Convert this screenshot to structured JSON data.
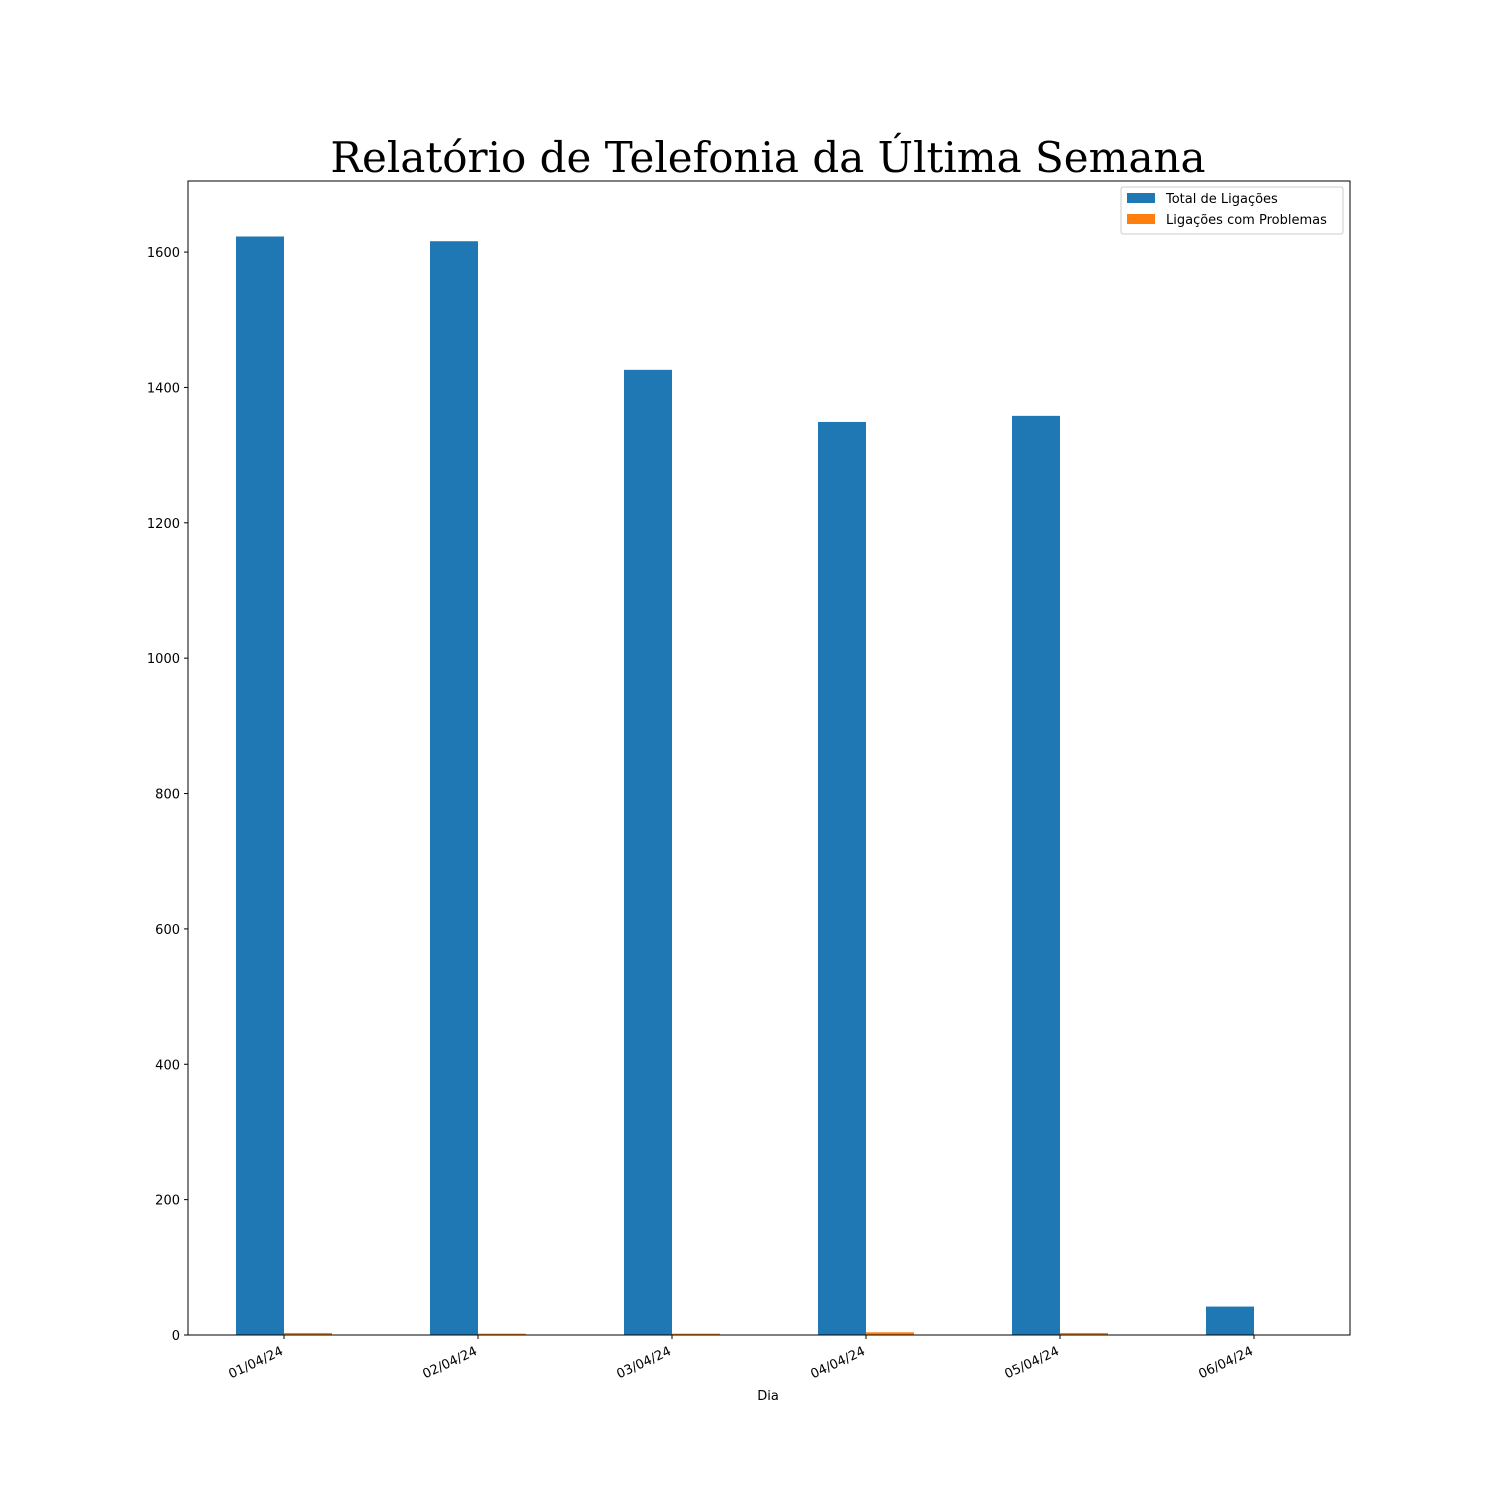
{
  "chart_data": {
    "type": "bar",
    "title": "Relatório de Telefonia da Última Semana",
    "xlabel": "Dia",
    "ylabel": "",
    "categories": [
      "01/04/24",
      "02/04/24",
      "03/04/24",
      "04/04/24",
      "05/04/24",
      "06/04/24"
    ],
    "series": [
      {
        "name": "Total de Ligações",
        "color": "#1f77b4",
        "values": [
          1623,
          1616,
          1426,
          1349,
          1358,
          42
        ]
      },
      {
        "name": "Ligações com Problemas",
        "color": "#ff7f0e",
        "values": [
          3,
          2,
          2,
          4,
          3,
          0
        ]
      }
    ],
    "ylim": [
      0,
      1705
    ],
    "yticks": [
      0,
      200,
      400,
      600,
      800,
      1000,
      1200,
      1400,
      1600
    ],
    "grid": false,
    "legend_position": "top-right"
  }
}
